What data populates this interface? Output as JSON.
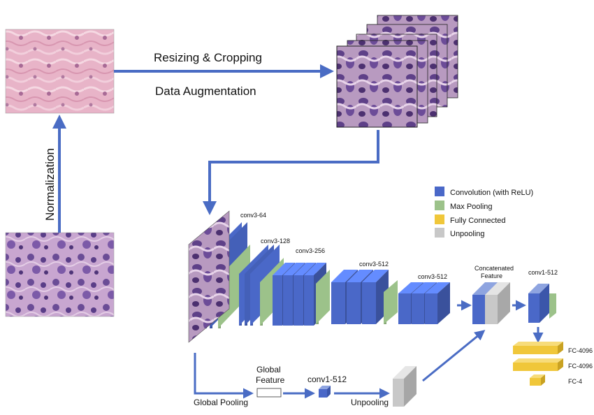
{
  "pipeline": {
    "resize_label": "Resizing & Cropping",
    "augment_label": "Data Augmentation",
    "normalization_label": "Normalization",
    "global_pooling_label": "Global Pooling",
    "global_feature_label_line1": "Global",
    "global_feature_label_line2": "Feature",
    "conv1_global_label": "conv1-512",
    "unpooling_label": "Unpooling"
  },
  "network": {
    "conv_blocks": [
      "conv3-64",
      "conv3-128",
      "conv3-256",
      "conv3-512",
      "conv3-512"
    ],
    "concat_label_line1": "Concatenated",
    "concat_label_line2": "Feature",
    "conv1_label": "conv1-512",
    "fc_labels": [
      "FC-4096",
      "FC-4096",
      "FC-4"
    ]
  },
  "legend": {
    "items": [
      {
        "label": "Convolution (with ReLU)",
        "color": "#4a68c8"
      },
      {
        "label": "Max Pooling",
        "color": "#9cc28a"
      },
      {
        "label": "Fully Connected",
        "color": "#f0c73a"
      },
      {
        "label": "Unpooling",
        "color": "#c8c8c8"
      }
    ]
  },
  "colors": {
    "arrow": "#4a6cc4",
    "conv": "#4a68c8",
    "pool": "#9cc28a",
    "fc": "#f0c73a",
    "unpool": "#c8c8c8"
  }
}
